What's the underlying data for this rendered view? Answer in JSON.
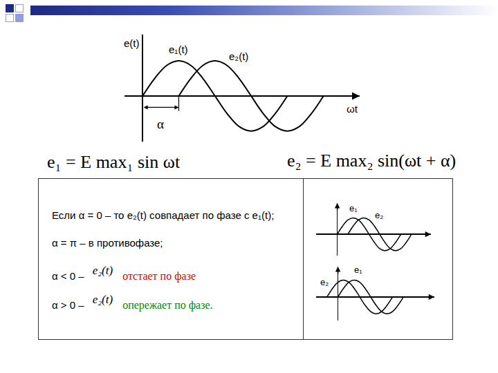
{
  "chart_data": [
    {
      "type": "line",
      "x_label": "ωt",
      "y_label": "e(t)",
      "xlim": [
        -45,
        540
      ],
      "ylim": [
        -1.3,
        1.75
      ],
      "xticks": [],
      "yticks": [],
      "tick_labels": false,
      "grid": false,
      "legend": false,
      "series": [
        {
          "name": "e₁(t)",
          "color": "#000000",
          "x": [
            0,
            30,
            60,
            90,
            120,
            150,
            180,
            210,
            240,
            270,
            300,
            330,
            360
          ],
          "values": [
            0,
            0.5,
            0.87,
            1,
            0.87,
            0.5,
            0,
            -0.5,
            -0.87,
            -1,
            -0.87,
            -0.5,
            0
          ]
        },
        {
          "name": "e₂(t)",
          "color": "#000000",
          "x": [
            90,
            120,
            150,
            180,
            210,
            240,
            270,
            300,
            330,
            360,
            390,
            420,
            450
          ],
          "values": [
            0,
            0.5,
            0.87,
            1,
            0.87,
            0.5,
            0,
            -0.5,
            -0.87,
            -1,
            -0.87,
            -0.5,
            0
          ]
        }
      ],
      "annotations": [
        {
          "text": "α",
          "x0": 0,
          "x1": 90
        }
      ]
    },
    {
      "type": "line",
      "xlim": [
        -120,
        530
      ],
      "ylim": [
        -1.3,
        1.9
      ],
      "xticks": [],
      "yticks": [],
      "tick_labels": false,
      "grid": false,
      "legend": false,
      "series": [
        {
          "name": "e₁",
          "color": "#000000",
          "x": [
            0,
            30,
            60,
            90,
            120,
            150,
            180,
            210,
            240,
            270,
            300,
            330,
            360
          ],
          "values": [
            0,
            0.5,
            0.87,
            1,
            0.87,
            0.5,
            0,
            -0.5,
            -0.87,
            -1,
            -0.87,
            -0.5,
            0
          ]
        },
        {
          "name": "e₂",
          "color": "#000000",
          "x": [
            60,
            90,
            120,
            150,
            180,
            210,
            240,
            270,
            300,
            330,
            360,
            390,
            420
          ],
          "values": [
            0,
            0.5,
            0.87,
            1,
            0.87,
            0.5,
            0,
            -0.5,
            -0.87,
            -1,
            -0.87,
            -0.5,
            0
          ]
        }
      ]
    },
    {
      "type": "line",
      "xlim": [
        -120,
        530
      ],
      "ylim": [
        -1.4,
        1.8
      ],
      "xticks": [],
      "yticks": [],
      "tick_labels": false,
      "grid": false,
      "legend": false,
      "series": [
        {
          "name": "e₁",
          "color": "#000000",
          "x": [
            0,
            30,
            60,
            90,
            120,
            150,
            180,
            210,
            240,
            270,
            300,
            330,
            360
          ],
          "values": [
            0,
            0.5,
            0.87,
            1,
            0.87,
            0.5,
            0,
            -0.5,
            -0.87,
            -1,
            -0.87,
            -0.5,
            0
          ]
        },
        {
          "name": "e₂",
          "color": "#000000",
          "x": [
            -60,
            -30,
            0,
            30,
            60,
            90,
            120,
            150,
            180,
            210,
            240,
            270,
            300
          ],
          "values": [
            0,
            0.5,
            0.87,
            1,
            0.87,
            0.5,
            0,
            -0.5,
            -0.87,
            -1,
            -0.87,
            -0.5,
            0
          ]
        }
      ]
    }
  ],
  "formulas": [
    "e₁ = E max₁ sin ωt",
    "e₂ = E max₂ sin(ωt + α)"
  ],
  "notes": {
    "lines": [
      "Если α = 0 – то e₂(t) совпадает по фазе с e₁(t);",
      "α = π – в противофазе;"
    ],
    "rules": [
      {
        "condition": "α < 0 –",
        "subject": "e₂(t)",
        "text": "отстает по фазе",
        "color": "#e00000"
      },
      {
        "condition": "α > 0 –",
        "subject": "e₂(t)",
        "text": "опережает по фазе.",
        "color": "#008a00"
      }
    ]
  }
}
